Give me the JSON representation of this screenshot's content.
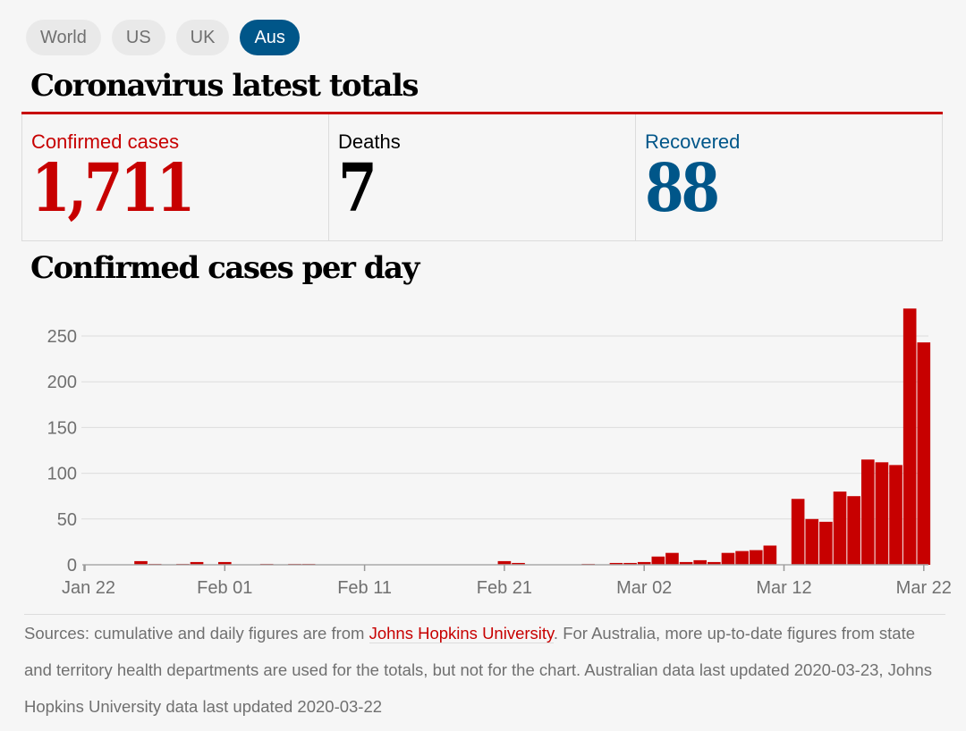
{
  "tabs": [
    {
      "label": "World",
      "active": false
    },
    {
      "label": "US",
      "active": false
    },
    {
      "label": "UK",
      "active": false
    },
    {
      "label": "Aus",
      "active": true
    }
  ],
  "title": "Coronavirus latest totals",
  "totals": {
    "confirmed": {
      "label": "Confirmed cases",
      "value": "1,711",
      "color": "#c70000"
    },
    "deaths": {
      "label": "Deaths",
      "value": "7",
      "color": "#000000"
    },
    "recovered": {
      "label": "Recovered",
      "value": "88",
      "color": "#005689"
    }
  },
  "chart_title": "Confirmed cases per day",
  "chart_data": {
    "type": "bar",
    "title": "Confirmed cases per day",
    "xlabel": "",
    "ylabel": "",
    "ylim": [
      0,
      280
    ],
    "yticks": [
      0,
      50,
      100,
      150,
      200,
      250
    ],
    "xtick_labels": [
      "Jan 22",
      "Feb 01",
      "Feb 11",
      "Feb 21",
      "Mar 02",
      "Mar 12",
      "Mar 22"
    ],
    "xtick_day_index": [
      0,
      10,
      20,
      30,
      40,
      50,
      60
    ],
    "start_date": "Jan 22",
    "grid": true,
    "bar_color": "#c70000",
    "values": [
      0,
      0,
      0,
      0,
      4,
      1,
      0,
      1,
      3,
      0,
      3,
      0,
      0,
      1,
      0,
      1,
      1,
      0,
      0,
      0,
      0,
      0,
      0,
      0,
      0,
      0,
      0,
      0,
      0,
      0,
      4,
      2,
      0,
      0,
      0,
      0,
      1,
      0,
      2,
      2,
      3,
      9,
      13,
      3,
      5,
      3,
      13,
      15,
      16,
      21,
      0,
      72,
      50,
      47,
      80,
      75,
      115,
      112,
      109,
      280,
      243
    ]
  },
  "source": {
    "prefix": "Sources: cumulative and daily figures are from ",
    "link": "Johns Hopkins University",
    "suffix": ". For Australia, more up-to-date figures from state and territory health departments are used for the totals, but not for the chart. Australian data last updated 2020-03-23, Johns Hopkins University data last updated 2020-03-22"
  }
}
